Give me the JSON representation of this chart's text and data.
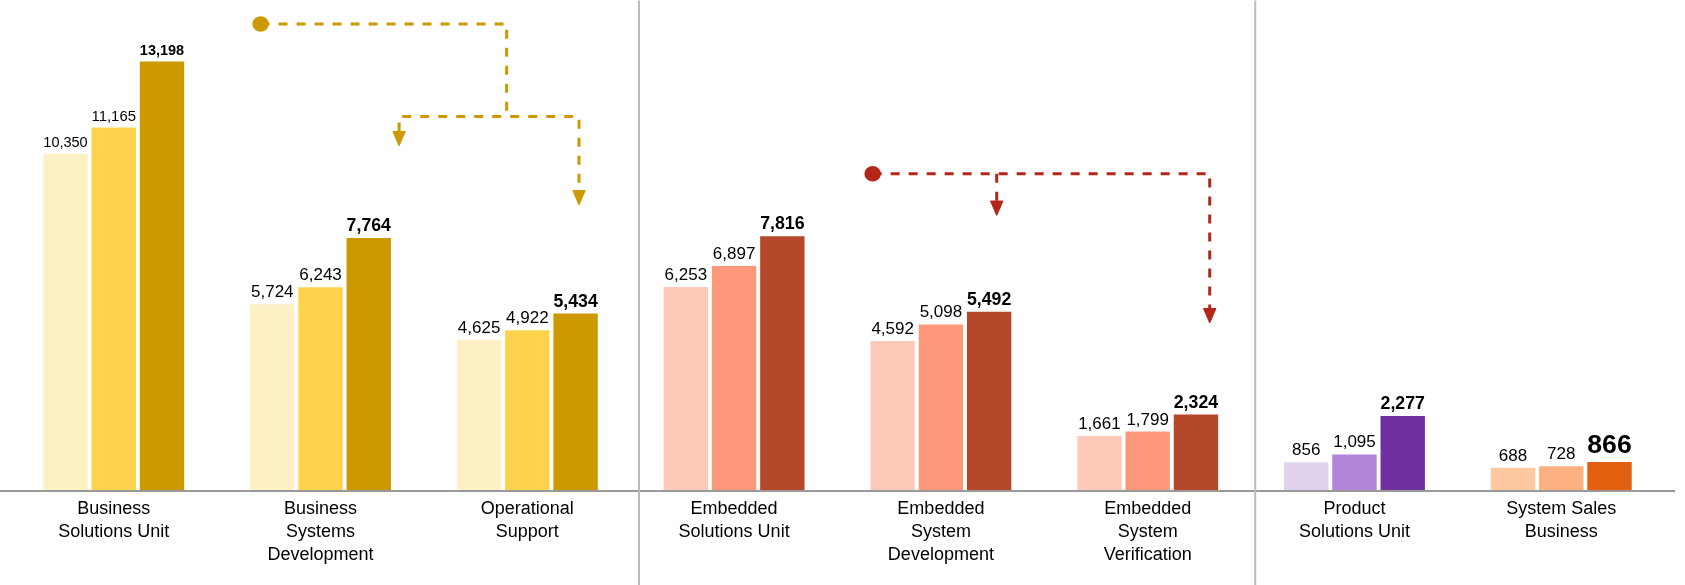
{
  "chart_data": {
    "type": "bar",
    "categories": [
      "Business Solutions Unit",
      "Business Systems Development",
      "Operational Support",
      "Embedded Solutions Unit",
      "Embedded System Development",
      "Embedded System Verification",
      "Product Solutions Unit",
      "System Sales Business"
    ],
    "series": [
      {
        "values": [
          10350,
          5724,
          4625,
          6253,
          4592,
          1661,
          856,
          688
        ],
        "colors": [
          "#fdf0c4",
          "#fdf0c4",
          "#fdf0c4",
          "#fdcab9",
          "#fdcab9",
          "#fdcab9",
          "#e1d3ee",
          "#fdc89f"
        ],
        "value_labels": [
          "10,350",
          "5,724",
          "4,625",
          "6,253",
          "4,592",
          "1,661",
          "856",
          "688"
        ]
      },
      {
        "values": [
          11165,
          6243,
          4922,
          6897,
          5098,
          1799,
          1095,
          728
        ],
        "colors": [
          "#fed24a",
          "#fed24a",
          "#fed24a",
          "#fe987a",
          "#fe987a",
          "#fe987a",
          "#b185d8",
          "#fdb07f"
        ],
        "value_labels": [
          "11,165",
          "6,243",
          "4,922",
          "6,897",
          "5,098",
          "1,799",
          "1,095",
          "728"
        ]
      },
      {
        "values": [
          13198,
          7764,
          5434,
          7816,
          5492,
          2324,
          2277,
          866
        ],
        "colors": [
          "#cc9a00",
          "#cc9a00",
          "#cc9a00",
          "#b5472a",
          "#b5472a",
          "#b5472a",
          "#7030a0",
          "#e06010"
        ],
        "value_labels": [
          "13,198",
          "7,764",
          "5,434",
          "7,816",
          "5,492",
          "2,324",
          "2,277",
          "866"
        ]
      }
    ],
    "tick_labels": "x"
  }
}
